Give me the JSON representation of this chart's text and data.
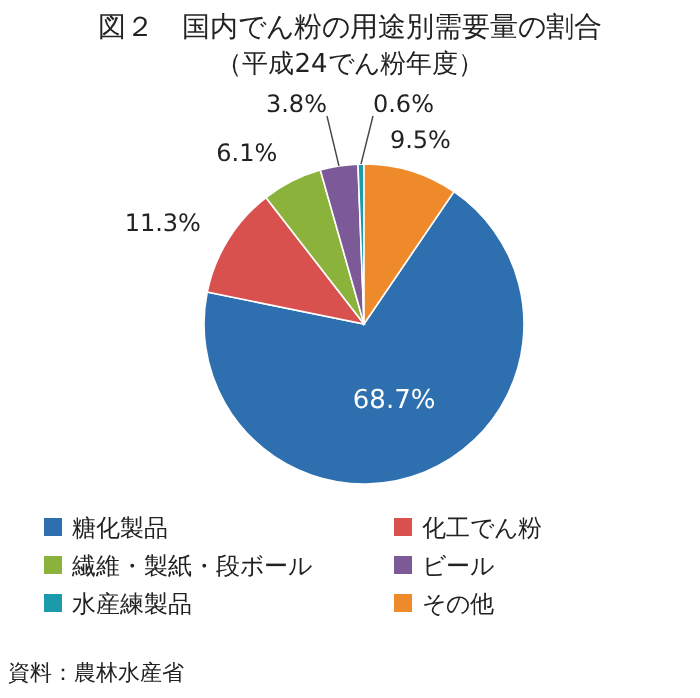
{
  "chart_data": {
    "type": "pie",
    "title": "図２　国内でん粉の用途別需要量の割合",
    "subtitle": "（平成24でん粉年度）",
    "categories": [
      "糖化製品",
      "化工でん粉",
      "繊維・製紙・段ボール",
      "ビール",
      "水産練製品",
      "その他"
    ],
    "values": [
      68.7,
      11.3,
      6.1,
      3.8,
      0.6,
      9.5
    ],
    "colors": [
      "#2e6fb0",
      "#d9514e",
      "#8bb33c",
      "#7b5a97",
      "#1b9aab",
      "#ef8a2a"
    ],
    "value_labels": [
      "68.7%",
      "11.3%",
      "6.1%",
      "3.8%",
      "0.6%",
      "9.5%"
    ],
    "legend": "bottom",
    "annotations": [
      "資料：農林水産省"
    ]
  }
}
